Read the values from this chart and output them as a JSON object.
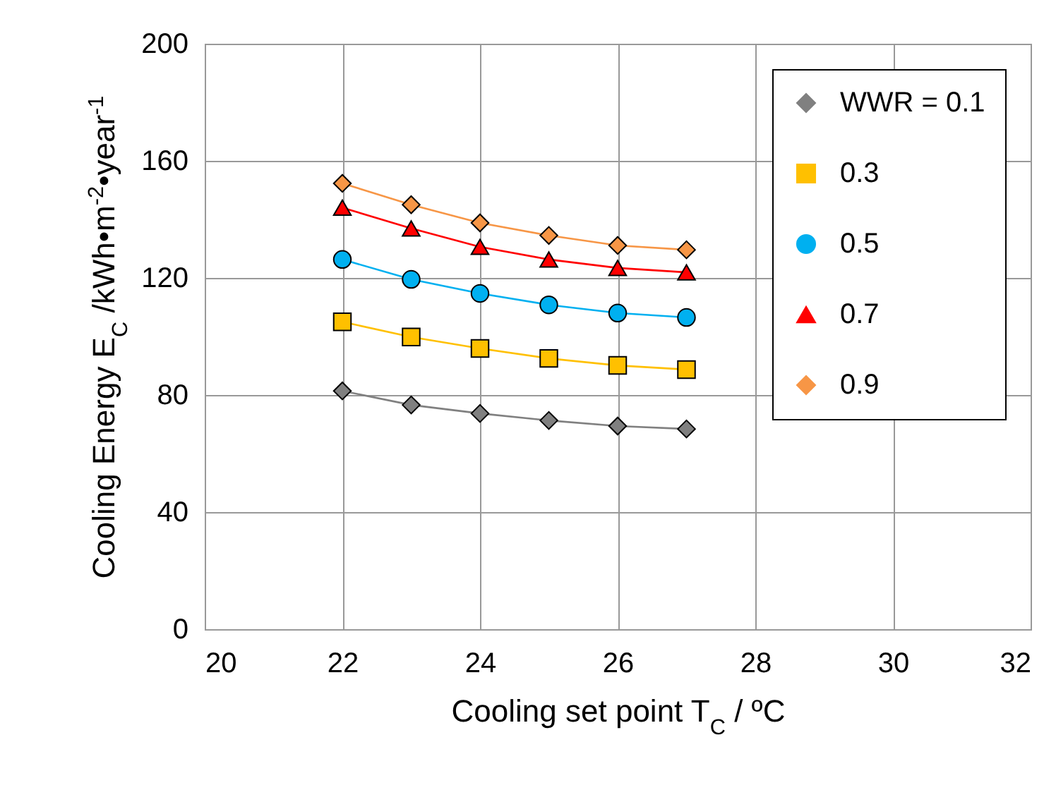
{
  "chart_data": {
    "type": "line",
    "xlabel": "Cooling set point T$_{C}$ / ºC",
    "ylabel": "Cooling Energy E$_{C}$ /kWh•m$^{-2}$•year$^{-1}$",
    "x": [
      22,
      23,
      24,
      25,
      26,
      27
    ],
    "series": [
      {
        "name": "WWR = 0.1",
        "color": "#808080",
        "marker": "diamond",
        "values": [
          81.4,
          76.6,
          73.7,
          71.3,
          69.4,
          68.4
        ]
      },
      {
        "name": "0.3",
        "color": "#ffc000",
        "marker": "square",
        "values": [
          105,
          99.8,
          95.9,
          92.5,
          90.1,
          88.7
        ]
      },
      {
        "name": "0.5",
        "color": "#00b0f0",
        "marker": "circle",
        "values": [
          126.3,
          119.5,
          114.7,
          110.8,
          108,
          106.5
        ]
      },
      {
        "name": "0.7",
        "color": "#ff0000",
        "marker": "triangle",
        "values": [
          144,
          136.9,
          130.6,
          126.3,
          123.4,
          121.9
        ]
      },
      {
        "name": "0.9",
        "color": "#f79646",
        "marker": "diamond",
        "values": [
          152.3,
          145,
          138.8,
          134.5,
          131.1,
          129.6
        ]
      }
    ],
    "xlim": [
      20,
      32
    ],
    "xticks": [
      20,
      22,
      24,
      26,
      28,
      30,
      32
    ],
    "ylim": [
      0,
      200
    ],
    "yticks": [
      0,
      40,
      80,
      120,
      160,
      200
    ],
    "grid": true,
    "legend": "top right",
    "line_style": "solid"
  }
}
